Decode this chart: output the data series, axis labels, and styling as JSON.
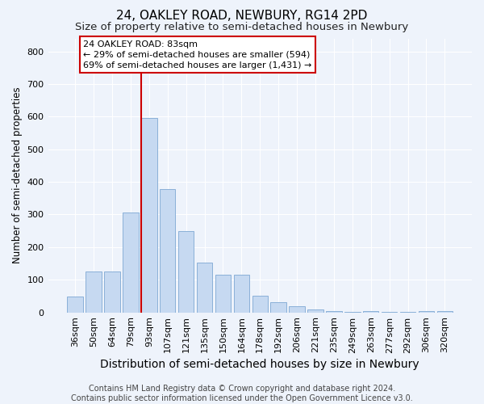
{
  "title": "24, OAKLEY ROAD, NEWBURY, RG14 2PD",
  "subtitle": "Size of property relative to semi-detached houses in Newbury",
  "xlabel": "Distribution of semi-detached houses by size in Newbury",
  "ylabel": "Number of semi-detached properties",
  "categories": [
    "36sqm",
    "50sqm",
    "64sqm",
    "79sqm",
    "93sqm",
    "107sqm",
    "121sqm",
    "135sqm",
    "150sqm",
    "164sqm",
    "178sqm",
    "192sqm",
    "206sqm",
    "221sqm",
    "235sqm",
    "249sqm",
    "263sqm",
    "277sqm",
    "292sqm",
    "306sqm",
    "320sqm"
  ],
  "values": [
    48,
    125,
    125,
    305,
    595,
    378,
    250,
    152,
    115,
    115,
    52,
    30,
    18,
    10,
    5,
    2,
    3,
    2,
    1,
    5,
    3
  ],
  "bar_color": "#c6d9f1",
  "bar_edge_color": "#8ab0d8",
  "background_color": "#eef3fb",
  "grid_color": "#ffffff",
  "vline_color": "#cc0000",
  "vline_bar_index": 4,
  "annotation_line1": "24 OAKLEY ROAD: 83sqm",
  "annotation_line2": "← 29% of semi-detached houses are smaller (594)",
  "annotation_line3": "69% of semi-detached houses are larger (1,431) →",
  "annotation_box_facecolor": "#ffffff",
  "annotation_box_edgecolor": "#cc0000",
  "footer_text": "Contains HM Land Registry data © Crown copyright and database right 2024.\nContains public sector information licensed under the Open Government Licence v3.0.",
  "ylim": [
    0,
    840
  ],
  "yticks": [
    0,
    100,
    200,
    300,
    400,
    500,
    600,
    700,
    800
  ],
  "title_fontsize": 11,
  "subtitle_fontsize": 9.5,
  "xlabel_fontsize": 10,
  "ylabel_fontsize": 8.5,
  "tick_fontsize": 8,
  "annotation_fontsize": 8,
  "footer_fontsize": 7
}
